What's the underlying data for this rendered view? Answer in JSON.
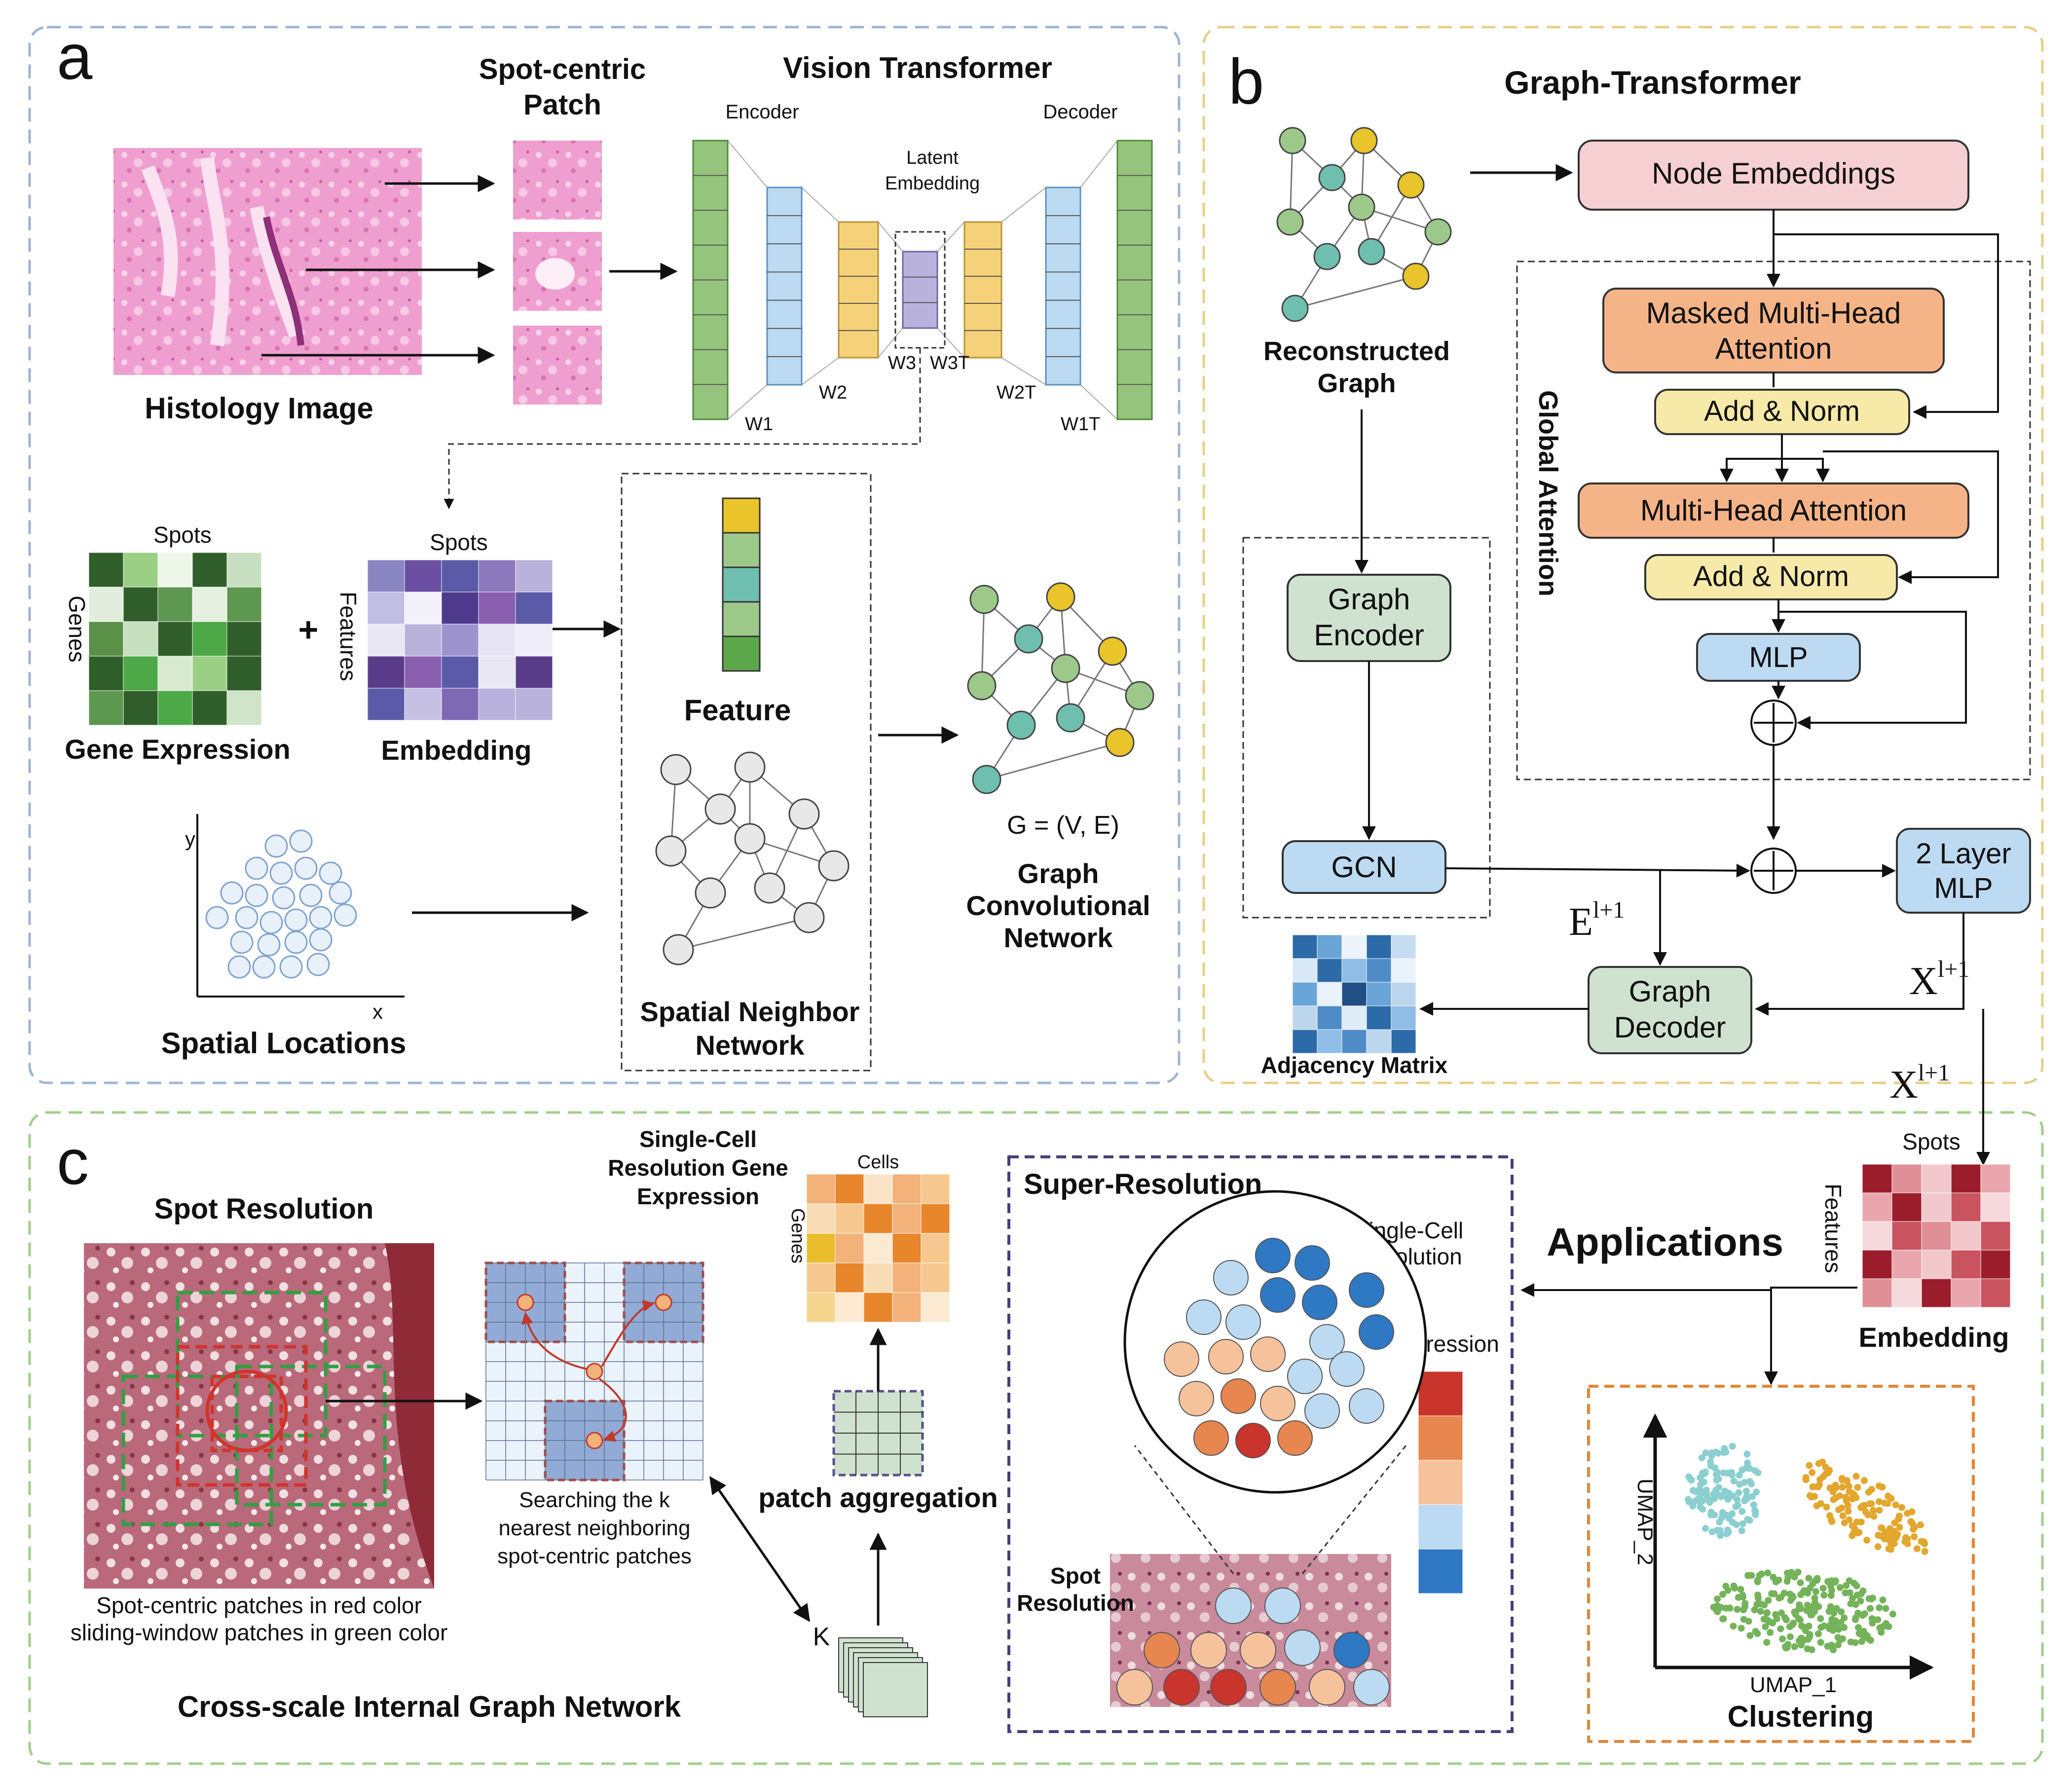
{
  "panel_a": {
    "letter": "a",
    "spot_centric_patch": [
      "Spot-centric",
      "Patch"
    ],
    "vision_transformer": "Vision Transformer",
    "encoder": "Encoder",
    "decoder": "Decoder",
    "latent_embedding": [
      "Latent",
      "Embedding"
    ],
    "histology_image": "Histology Image",
    "w1": "W1",
    "w2": "W2",
    "w3": "W3",
    "w3t": "W3T",
    "w2t": "W2T",
    "w1t": "W1T",
    "spots": "Spots",
    "genes": "Genes",
    "features": "Features",
    "plus": "+",
    "gene_expression": "Gene Expression",
    "embedding": "Embedding",
    "feature": "Feature",
    "spatial_neighbor_network": [
      "Spatial Neighbor",
      "Network"
    ],
    "graph_formula": "G = (V, E)",
    "gcn_title": [
      "Graph",
      "Convolutional",
      "Network"
    ],
    "axis_y": "y",
    "axis_x": "x",
    "spatial_locations": "Spatial Locations"
  },
  "panel_b": {
    "letter": "b",
    "title": "Graph-Transformer",
    "reconstructed_graph": [
      "Reconstructed",
      "Graph"
    ],
    "node_embeddings": "Node Embeddings",
    "masked_mha": [
      "Masked Multi-Head",
      "Attention"
    ],
    "add_norm_1": "Add & Norm",
    "mha": "Multi-Head Attention",
    "add_norm_2": "Add & Norm",
    "mlp": "MLP",
    "global_attention": "Global Attention",
    "graph_encoder": [
      "Graph",
      "Encoder"
    ],
    "gcn": "GCN",
    "two_layer_mlp": [
      "2 Layer",
      "MLP"
    ],
    "e_label": "E",
    "e_sup": "l+1",
    "x_label": "X",
    "x_sup": "l+1",
    "graph_decoder": [
      "Graph",
      "Decoder"
    ],
    "adjacency_matrix": "Adjacency Matrix"
  },
  "panel_c": {
    "letter": "c",
    "spot_resolution": "Spot Resolution",
    "patch_caption": [
      "Spot-centric patches in red color",
      "sliding-window patches in green color"
    ],
    "single_cell_gene_expr": [
      "Single-Cell",
      "Resolution Gene",
      "Expression"
    ],
    "cells": "Cells",
    "genes": "Genes",
    "search_caption": [
      "Searching the k",
      "nearest neighboring",
      "spot-centric patches"
    ],
    "patch_aggregation": "patch aggregation",
    "k": "K",
    "cross_scale": "Cross-scale Internal Graph Network",
    "super_resolution": "Super-Resolution",
    "single_cell_resolution": [
      "Single-Cell",
      "Resolution"
    ],
    "expression": "Expression",
    "spot_resolution_small": [
      "Spot",
      "Resolution"
    ],
    "x_label": "X",
    "x_sup": "l+1",
    "spots": "Spots",
    "features": "Features",
    "embedding": "Embedding",
    "applications": "Applications",
    "umap_1": "UMAP_1",
    "umap_2": "UMAP_2",
    "clustering": "Clustering"
  },
  "colors": {
    "panel_a_border": "#9db4d3",
    "panel_b_border": "#e8cf86",
    "panel_c_border": "#9fcf8a",
    "pink_box": "#f6cfd2",
    "orange_box": "#f5b487",
    "yellow_box": "#f7eaa8",
    "blue_box": "#bcdaf2",
    "green_box": "#cfe2cf"
  }
}
